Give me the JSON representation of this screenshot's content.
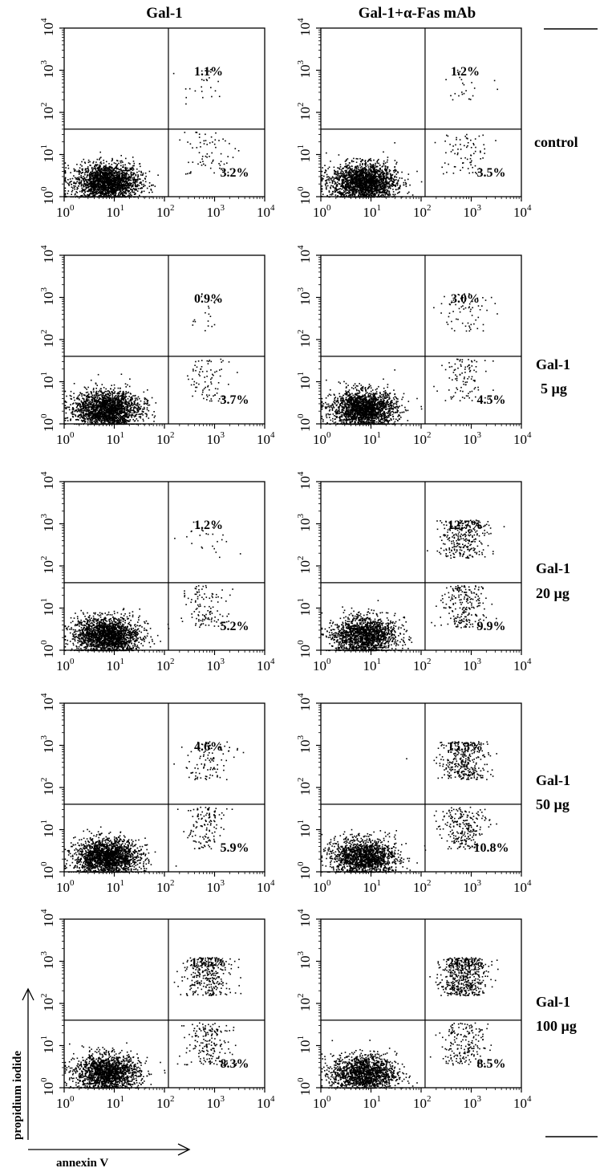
{
  "column_headers": [
    "Gal-1",
    "Gal-1+α-Fas mAb"
  ],
  "row_labels": [
    [
      "control"
    ],
    [
      "Gal-1",
      "5 µg"
    ],
    [
      "Gal-1",
      "20 µg"
    ],
    [
      "Gal-1",
      "50 µg"
    ],
    [
      "Gal-1",
      "100 µg"
    ]
  ],
  "axis_labels": {
    "x": "annexin V",
    "y": "propidium iodide"
  },
  "tick_labels": {
    "base": "10",
    "exponents": [
      "0",
      "1",
      "2",
      "3",
      "4"
    ]
  },
  "chart_data": {
    "type": "scatter",
    "xscale": "log",
    "yscale": "log",
    "xlim": [
      1,
      10000
    ],
    "ylim": [
      1,
      10000
    ],
    "quadrant_gate": {
      "x": 120,
      "y": 40
    },
    "panels": [
      {
        "column": "Gal-1",
        "row": "control",
        "upper_right": "1.1%",
        "lower_right": "3.2%"
      },
      {
        "column": "Gal-1+α-Fas mAb",
        "row": "control",
        "upper_right": "1.2%",
        "lower_right": "3.5%"
      },
      {
        "column": "Gal-1",
        "row": "Gal-1 5 µg",
        "upper_right": "0.9%",
        "lower_right": "3.7%"
      },
      {
        "column": "Gal-1+α-Fas mAb",
        "row": "Gal-1 5 µg",
        "upper_right": "3.0%",
        "lower_right": "4.5%"
      },
      {
        "column": "Gal-1",
        "row": "Gal-1 20 µg",
        "upper_right": "1.2%",
        "lower_right": "5.2%"
      },
      {
        "column": "Gal-1+α-Fas mAb",
        "row": "Gal-1 20 µg",
        "upper_right": "12.7%",
        "lower_right": "9.9%"
      },
      {
        "column": "Gal-1",
        "row": "Gal-1 50 µg",
        "upper_right": "4.6%",
        "lower_right": "5.9%"
      },
      {
        "column": "Gal-1+α-Fas mAb",
        "row": "Gal-1 50 µg",
        "upper_right": "15.3%",
        "lower_right": "10.8%"
      },
      {
        "column": "Gal-1",
        "row": "Gal-1 100 µg",
        "upper_right": "13.5%",
        "lower_right": "8.3%"
      },
      {
        "column": "Gal-1+α-Fas mAb",
        "row": "Gal-1 100 µg",
        "upper_right": "21.9%",
        "lower_right": "8.5%"
      }
    ]
  }
}
